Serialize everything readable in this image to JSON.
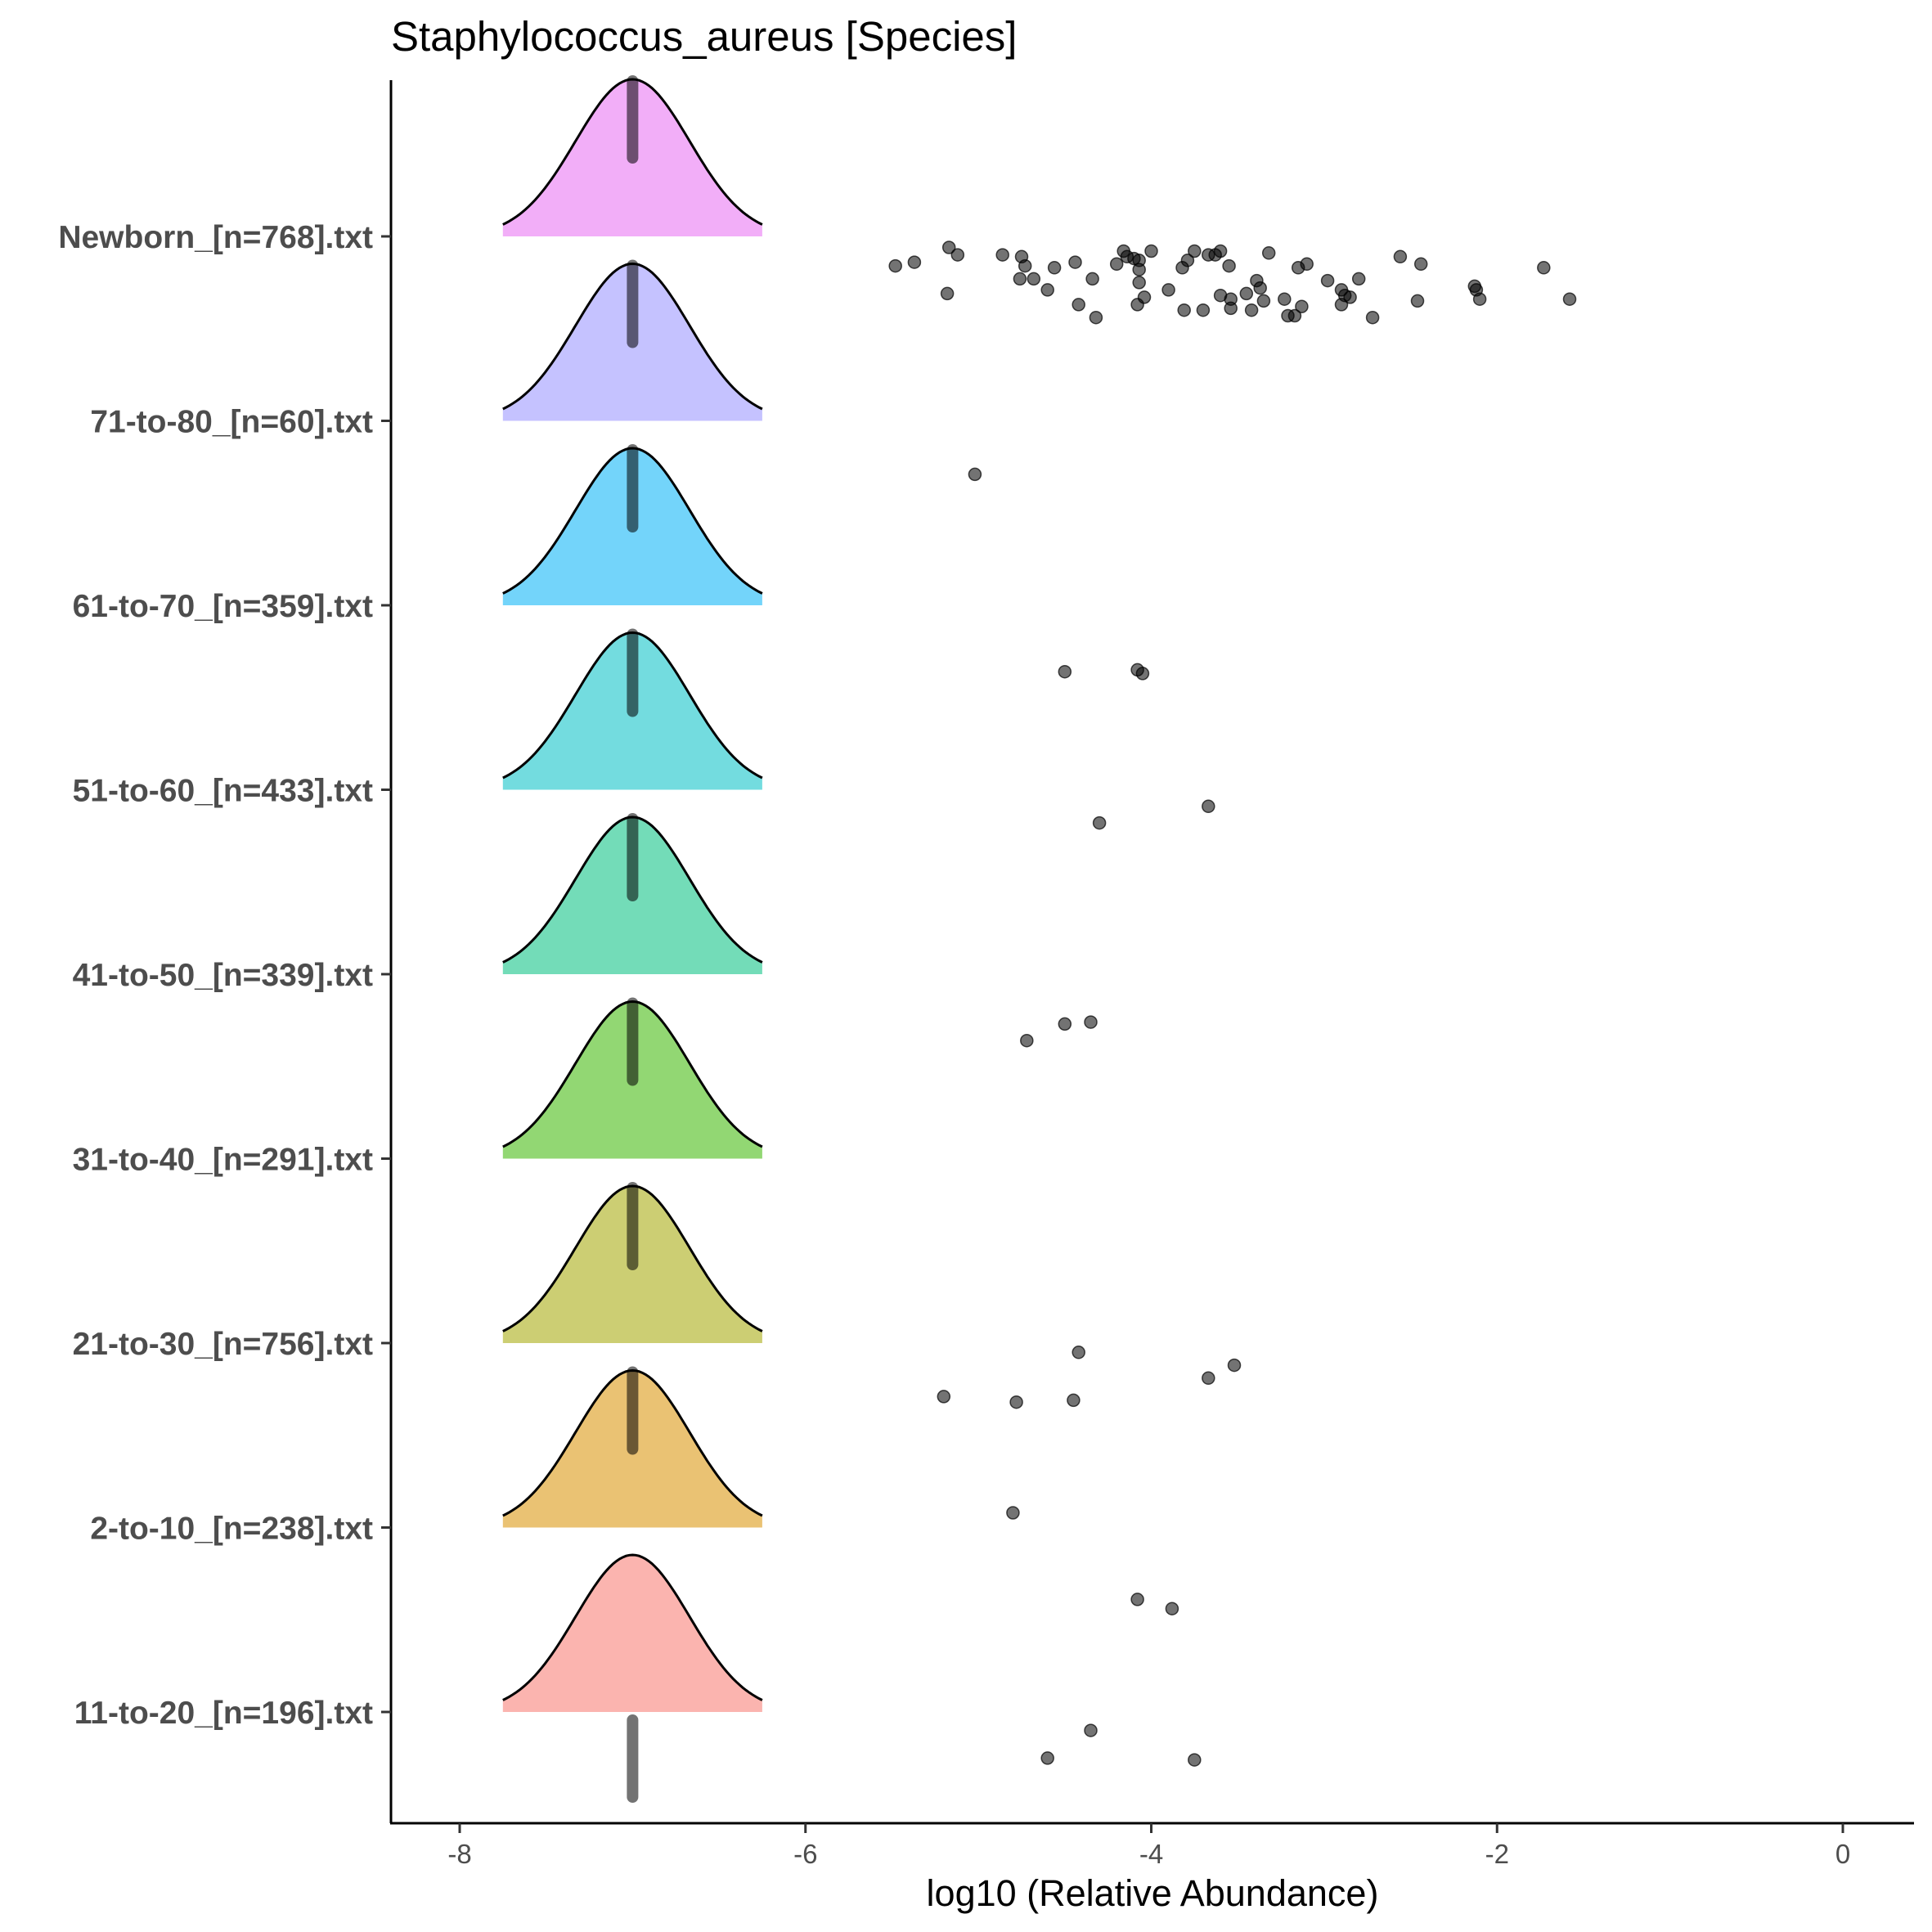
{
  "chart_data": {
    "type": "ridgeline",
    "title": "Staphylococcus_aureus [Species]",
    "xlabel": "log10 (Relative Abundance)",
    "ylabel": "",
    "xlim": [
      -8.4,
      0.4
    ],
    "xticks": [
      -8,
      -6,
      -4,
      -2,
      0
    ],
    "grid": false,
    "legend": "none",
    "ridge_peak_x": -7,
    "ridge_range": [
      -7.75,
      -6.25
    ],
    "groups": [
      {
        "label": "11-to-20_[n=196].txt",
        "color": "#f8766d",
        "points": [
          [
            -4.6,
            -0.25
          ],
          [
            -4.35,
            -0.1
          ],
          [
            -3.75,
            -0.26
          ]
        ]
      },
      {
        "label": "2-to-10_[n=238].txt",
        "color": "#d89000",
        "points": [
          [
            -4.8,
            0.08
          ],
          [
            -4.08,
            -0.39
          ],
          [
            -3.88,
            -0.44
          ]
        ]
      },
      {
        "label": "21-to-30_[n=756].txt",
        "color": "#a3a500",
        "points": [
          [
            -4.42,
            -0.05
          ],
          [
            -3.52,
            -0.12
          ],
          [
            -3.67,
            -0.19
          ],
          [
            -5.2,
            -0.29
          ],
          [
            -4.45,
            -0.31
          ],
          [
            -4.78,
            -0.32
          ]
        ]
      },
      {
        "label": "31-to-40_[n=291].txt",
        "color": "#39b600",
        "points": []
      },
      {
        "label": "41-to-50_[n=339].txt",
        "color": "#00bf7d",
        "points": [
          [
            -4.35,
            -0.26
          ],
          [
            -4.5,
            -0.27
          ],
          [
            -4.72,
            -0.36
          ]
        ]
      },
      {
        "label": "51-to-60_[n=433].txt",
        "color": "#00bfc4",
        "points": [
          [
            -3.67,
            -0.09
          ],
          [
            -4.3,
            -0.18
          ]
        ]
      },
      {
        "label": "61-to-70_[n=359].txt",
        "color": "#00b0f6",
        "points": [
          [
            -4.08,
            -0.35
          ],
          [
            -4.05,
            -0.37
          ],
          [
            -4.5,
            -0.36
          ]
        ]
      },
      {
        "label": "71-to-80_[n=60].txt",
        "color": "#9590ff",
        "points": [
          [
            -5.02,
            -0.29
          ]
        ]
      },
      {
        "label": "Newborn_[n=768].txt",
        "color": "#e76bf3",
        "points": [
          [
            -5.48,
            -0.16
          ],
          [
            -5.37,
            -0.14
          ],
          [
            -5.17,
            -0.06
          ],
          [
            -5.12,
            -0.1
          ],
          [
            -5.18,
            -0.31
          ],
          [
            -4.86,
            -0.1
          ],
          [
            -4.75,
            -0.11
          ],
          [
            -4.73,
            -0.16
          ],
          [
            -4.76,
            -0.23
          ],
          [
            -4.68,
            -0.23
          ],
          [
            -4.6,
            -0.29
          ],
          [
            -4.56,
            -0.17
          ],
          [
            -4.44,
            -0.14
          ],
          [
            -4.42,
            -0.37
          ],
          [
            -4.34,
            -0.23
          ],
          [
            -4.32,
            -0.44
          ],
          [
            -4.2,
            -0.15
          ],
          [
            -4.16,
            -0.08
          ],
          [
            -4.14,
            -0.11
          ],
          [
            -4.1,
            -0.12
          ],
          [
            -4.07,
            -0.13
          ],
          [
            -4.07,
            -0.18
          ],
          [
            -4.07,
            -0.25
          ],
          [
            -4.04,
            -0.33
          ],
          [
            -4.08,
            -0.37
          ],
          [
            -4.0,
            -0.08
          ],
          [
            -3.9,
            -0.29
          ],
          [
            -3.82,
            -0.17
          ],
          [
            -3.79,
            -0.13
          ],
          [
            -3.75,
            -0.08
          ],
          [
            -3.81,
            -0.4
          ],
          [
            -3.7,
            -0.4
          ],
          [
            -3.67,
            -0.1
          ],
          [
            -3.63,
            -0.1
          ],
          [
            -3.6,
            -0.08
          ],
          [
            -3.6,
            -0.32
          ],
          [
            -3.55,
            -0.16
          ],
          [
            -3.54,
            -0.34
          ],
          [
            -3.54,
            -0.39
          ],
          [
            -3.45,
            -0.31
          ],
          [
            -3.42,
            -0.4
          ],
          [
            -3.39,
            -0.24
          ],
          [
            -3.37,
            -0.28
          ],
          [
            -3.35,
            -0.35
          ],
          [
            -3.32,
            -0.09
          ],
          [
            -3.23,
            -0.34
          ],
          [
            -3.21,
            -0.43
          ],
          [
            -3.17,
            -0.43
          ],
          [
            -3.15,
            -0.17
          ],
          [
            -3.13,
            -0.38
          ],
          [
            -3.1,
            -0.15
          ],
          [
            -2.98,
            -0.24
          ],
          [
            -2.9,
            -0.29
          ],
          [
            -2.88,
            -0.32
          ],
          [
            -2.9,
            -0.37
          ],
          [
            -2.85,
            -0.33
          ],
          [
            -2.8,
            -0.23
          ],
          [
            -2.72,
            -0.44
          ],
          [
            -2.56,
            -0.11
          ],
          [
            -2.46,
            -0.35
          ],
          [
            -2.44,
            -0.15
          ],
          [
            -2.13,
            -0.27
          ],
          [
            -2.12,
            -0.29
          ],
          [
            -2.1,
            -0.34
          ],
          [
            -1.73,
            -0.17
          ],
          [
            -1.58,
            -0.34
          ]
        ]
      }
    ]
  }
}
